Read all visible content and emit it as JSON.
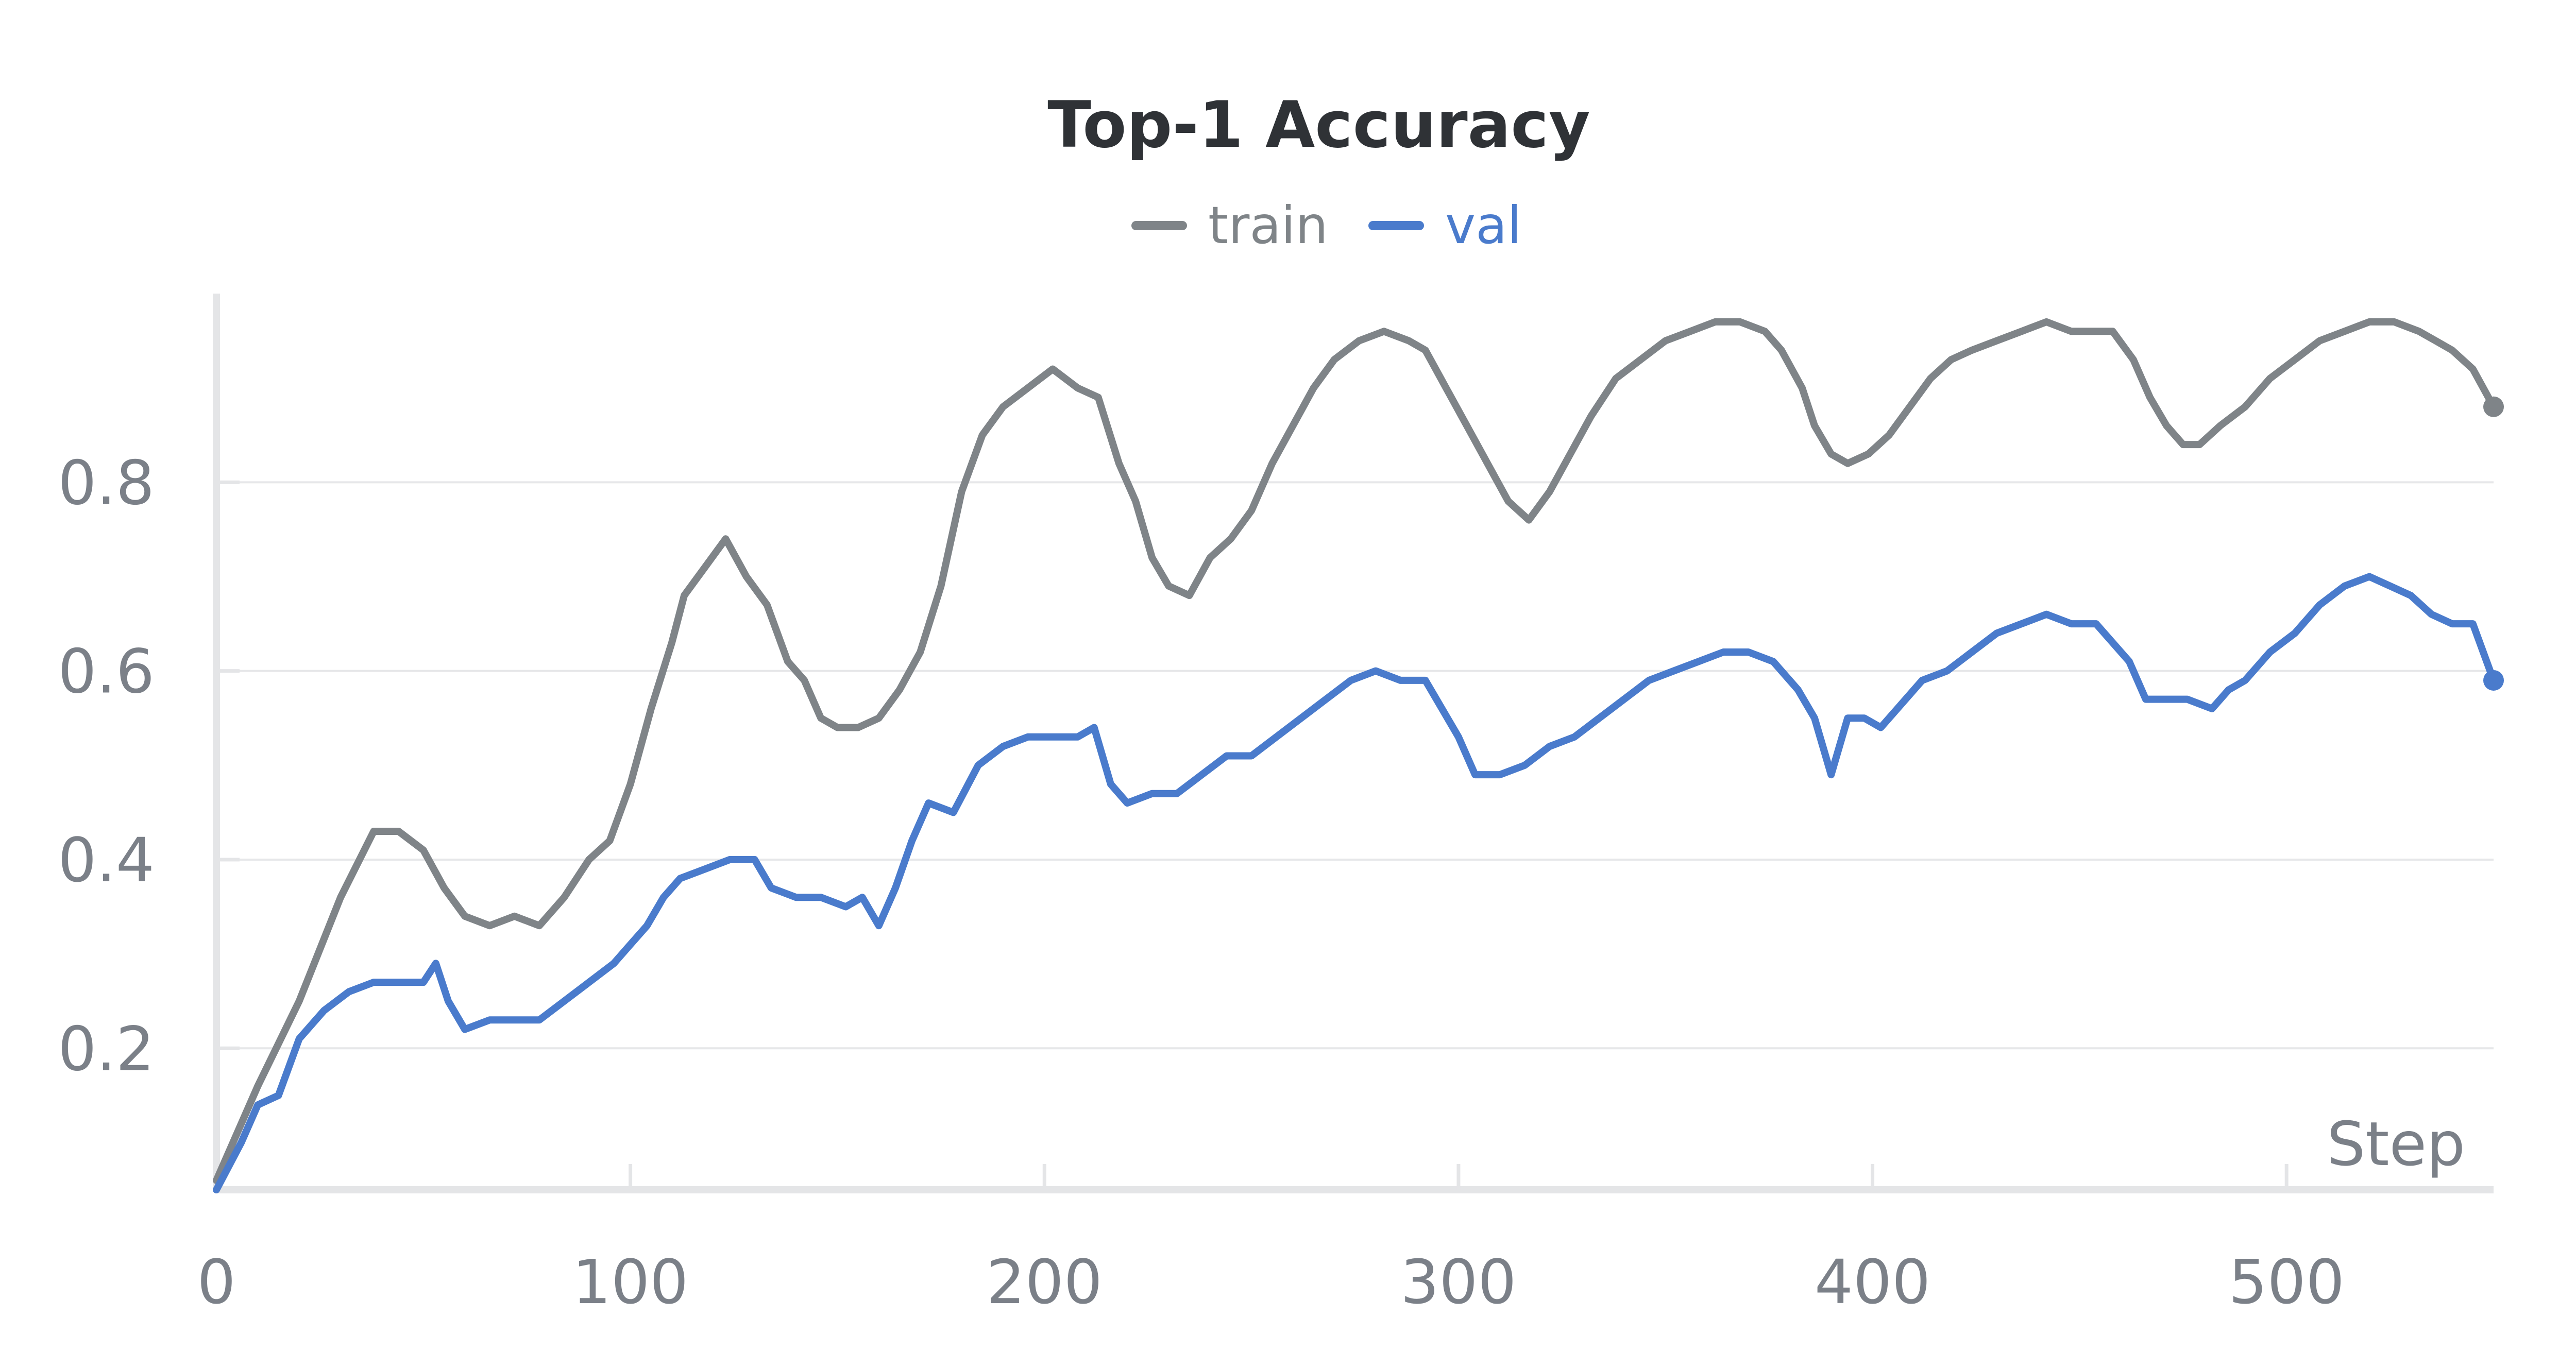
{
  "chart_data": {
    "type": "line",
    "title": "Top-1 Accuracy",
    "xlabel": "Step",
    "ylabel": "",
    "xlim": [
      0,
      550
    ],
    "ylim": [
      0.05,
      1.0
    ],
    "xticks": [
      0,
      100,
      200,
      300,
      400,
      500
    ],
    "yticks": [
      0.2,
      0.4,
      0.6,
      0.8
    ],
    "xtick_labels": [
      "0",
      "100",
      "200",
      "300",
      "400",
      "500"
    ],
    "ytick_labels": [
      "0.2",
      "0.4",
      "0.6",
      "0.8"
    ],
    "grid": true,
    "legend_position": "top-center",
    "series": [
      {
        "name": "train",
        "color": "#7f8488",
        "points": [
          [
            0,
            0.06
          ],
          [
            10,
            0.16
          ],
          [
            20,
            0.25
          ],
          [
            30,
            0.36
          ],
          [
            38,
            0.43
          ],
          [
            44,
            0.43
          ],
          [
            50,
            0.41
          ],
          [
            55,
            0.37
          ],
          [
            60,
            0.34
          ],
          [
            66,
            0.33
          ],
          [
            72,
            0.34
          ],
          [
            78,
            0.33
          ],
          [
            84,
            0.36
          ],
          [
            90,
            0.4
          ],
          [
            95,
            0.42
          ],
          [
            100,
            0.48
          ],
          [
            105,
            0.56
          ],
          [
            110,
            0.63
          ],
          [
            113,
            0.68
          ],
          [
            118,
            0.71
          ],
          [
            123,
            0.74
          ],
          [
            128,
            0.7
          ],
          [
            133,
            0.67
          ],
          [
            138,
            0.61
          ],
          [
            142,
            0.59
          ],
          [
            146,
            0.55
          ],
          [
            150,
            0.54
          ],
          [
            155,
            0.54
          ],
          [
            160,
            0.55
          ],
          [
            165,
            0.58
          ],
          [
            170,
            0.62
          ],
          [
            175,
            0.69
          ],
          [
            180,
            0.79
          ],
          [
            185,
            0.85
          ],
          [
            190,
            0.88
          ],
          [
            196,
            0.9
          ],
          [
            202,
            0.92
          ],
          [
            208,
            0.9
          ],
          [
            213,
            0.89
          ],
          [
            218,
            0.82
          ],
          [
            222,
            0.78
          ],
          [
            226,
            0.72
          ],
          [
            230,
            0.69
          ],
          [
            235,
            0.68
          ],
          [
            240,
            0.72
          ],
          [
            245,
            0.74
          ],
          [
            250,
            0.77
          ],
          [
            255,
            0.82
          ],
          [
            260,
            0.86
          ],
          [
            265,
            0.9
          ],
          [
            270,
            0.93
          ],
          [
            276,
            0.95
          ],
          [
            282,
            0.96
          ],
          [
            288,
            0.95
          ],
          [
            292,
            0.94
          ],
          [
            297,
            0.9
          ],
          [
            302,
            0.86
          ],
          [
            307,
            0.82
          ],
          [
            312,
            0.78
          ],
          [
            317,
            0.76
          ],
          [
            322,
            0.79
          ],
          [
            327,
            0.83
          ],
          [
            332,
            0.87
          ],
          [
            338,
            0.91
          ],
          [
            344,
            0.93
          ],
          [
            350,
            0.95
          ],
          [
            356,
            0.96
          ],
          [
            362,
            0.97
          ],
          [
            368,
            0.97
          ],
          [
            374,
            0.96
          ],
          [
            378,
            0.94
          ],
          [
            383,
            0.9
          ],
          [
            386,
            0.86
          ],
          [
            390,
            0.83
          ],
          [
            394,
            0.82
          ],
          [
            399,
            0.83
          ],
          [
            404,
            0.85
          ],
          [
            409,
            0.88
          ],
          [
            414,
            0.91
          ],
          [
            419,
            0.93
          ],
          [
            424,
            0.94
          ],
          [
            430,
            0.95
          ],
          [
            436,
            0.96
          ],
          [
            442,
            0.97
          ],
          [
            448,
            0.96
          ],
          [
            453,
            0.96
          ],
          [
            458,
            0.96
          ],
          [
            463,
            0.93
          ],
          [
            467,
            0.89
          ],
          [
            471,
            0.86
          ],
          [
            475,
            0.84
          ],
          [
            479,
            0.84
          ],
          [
            484,
            0.86
          ],
          [
            490,
            0.88
          ],
          [
            496,
            0.91
          ],
          [
            502,
            0.93
          ],
          [
            508,
            0.95
          ],
          [
            514,
            0.96
          ],
          [
            520,
            0.97
          ],
          [
            526,
            0.97
          ],
          [
            532,
            0.96
          ],
          [
            536,
            0.95
          ],
          [
            540,
            0.94
          ],
          [
            545,
            0.92
          ],
          [
            550,
            0.88
          ]
        ]
      },
      {
        "name": "val",
        "color": "#4a7bcc",
        "points": [
          [
            0,
            0.05
          ],
          [
            6,
            0.1
          ],
          [
            10,
            0.14
          ],
          [
            15,
            0.15
          ],
          [
            20,
            0.21
          ],
          [
            26,
            0.24
          ],
          [
            32,
            0.26
          ],
          [
            38,
            0.27
          ],
          [
            44,
            0.27
          ],
          [
            50,
            0.27
          ],
          [
            53,
            0.29
          ],
          [
            56,
            0.25
          ],
          [
            60,
            0.22
          ],
          [
            66,
            0.23
          ],
          [
            72,
            0.23
          ],
          [
            78,
            0.23
          ],
          [
            84,
            0.25
          ],
          [
            90,
            0.27
          ],
          [
            96,
            0.29
          ],
          [
            100,
            0.31
          ],
          [
            104,
            0.33
          ],
          [
            108,
            0.36
          ],
          [
            112,
            0.38
          ],
          [
            118,
            0.39
          ],
          [
            124,
            0.4
          ],
          [
            130,
            0.4
          ],
          [
            134,
            0.37
          ],
          [
            140,
            0.36
          ],
          [
            146,
            0.36
          ],
          [
            152,
            0.35
          ],
          [
            156,
            0.36
          ],
          [
            160,
            0.33
          ],
          [
            164,
            0.37
          ],
          [
            168,
            0.42
          ],
          [
            172,
            0.46
          ],
          [
            178,
            0.45
          ],
          [
            184,
            0.5
          ],
          [
            190,
            0.52
          ],
          [
            196,
            0.53
          ],
          [
            202,
            0.53
          ],
          [
            208,
            0.53
          ],
          [
            212,
            0.54
          ],
          [
            216,
            0.48
          ],
          [
            220,
            0.46
          ],
          [
            226,
            0.47
          ],
          [
            232,
            0.47
          ],
          [
            238,
            0.49
          ],
          [
            244,
            0.51
          ],
          [
            250,
            0.51
          ],
          [
            256,
            0.53
          ],
          [
            262,
            0.55
          ],
          [
            268,
            0.57
          ],
          [
            274,
            0.59
          ],
          [
            280,
            0.6
          ],
          [
            286,
            0.59
          ],
          [
            292,
            0.59
          ],
          [
            296,
            0.56
          ],
          [
            300,
            0.53
          ],
          [
            304,
            0.49
          ],
          [
            310,
            0.49
          ],
          [
            316,
            0.5
          ],
          [
            322,
            0.52
          ],
          [
            328,
            0.53
          ],
          [
            334,
            0.55
          ],
          [
            340,
            0.57
          ],
          [
            346,
            0.59
          ],
          [
            352,
            0.6
          ],
          [
            358,
            0.61
          ],
          [
            364,
            0.62
          ],
          [
            370,
            0.62
          ],
          [
            376,
            0.61
          ],
          [
            382,
            0.58
          ],
          [
            386,
            0.55
          ],
          [
            390,
            0.49
          ],
          [
            394,
            0.55
          ],
          [
            398,
            0.55
          ],
          [
            402,
            0.54
          ],
          [
            406,
            0.56
          ],
          [
            412,
            0.59
          ],
          [
            418,
            0.6
          ],
          [
            424,
            0.62
          ],
          [
            430,
            0.64
          ],
          [
            436,
            0.65
          ],
          [
            442,
            0.66
          ],
          [
            448,
            0.65
          ],
          [
            454,
            0.65
          ],
          [
            458,
            0.63
          ],
          [
            462,
            0.61
          ],
          [
            466,
            0.57
          ],
          [
            470,
            0.57
          ],
          [
            476,
            0.57
          ],
          [
            482,
            0.56
          ],
          [
            486,
            0.58
          ],
          [
            490,
            0.59
          ],
          [
            496,
            0.62
          ],
          [
            502,
            0.64
          ],
          [
            508,
            0.67
          ],
          [
            514,
            0.69
          ],
          [
            520,
            0.7
          ],
          [
            525,
            0.69
          ],
          [
            530,
            0.68
          ],
          [
            535,
            0.66
          ],
          [
            540,
            0.65
          ],
          [
            545,
            0.65
          ],
          [
            550,
            0.59
          ]
        ]
      }
    ]
  }
}
